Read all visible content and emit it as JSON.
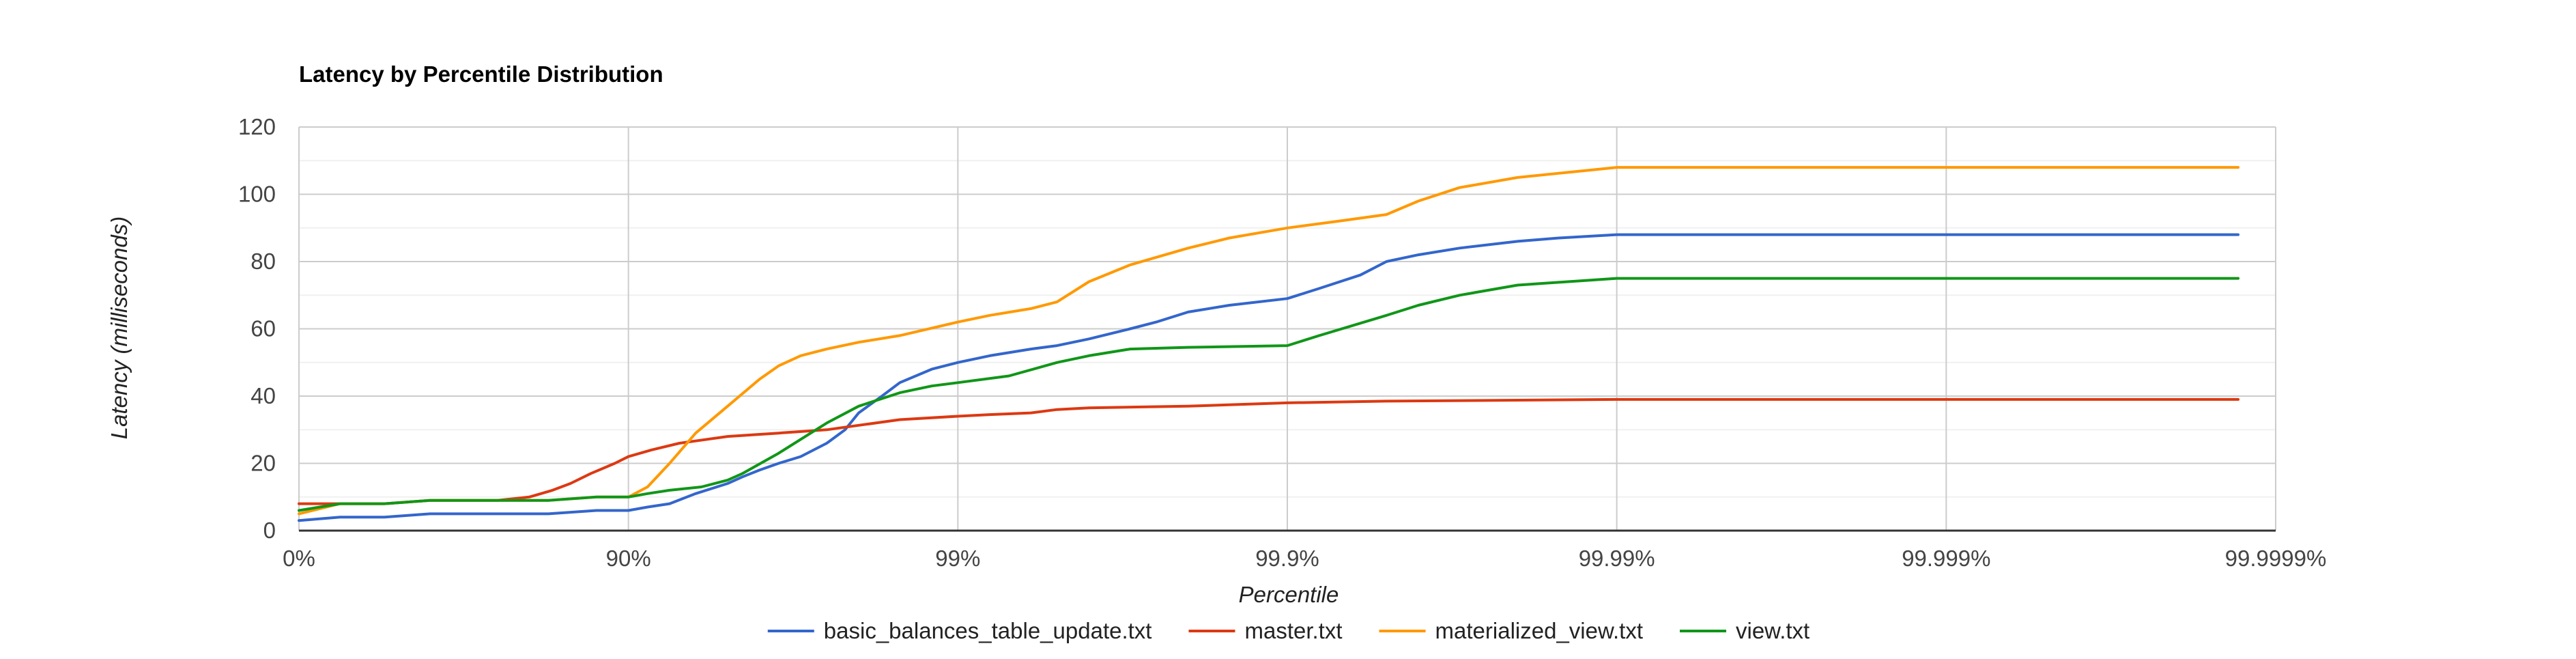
{
  "chart_data": {
    "type": "line",
    "title": "Latency by Percentile Distribution",
    "xlabel": "Percentile",
    "ylabel": "Latency (milliseconds)",
    "x_ticks": [
      "0%",
      "90%",
      "99%",
      "99.9%",
      "99.99%",
      "99.999%",
      "99.9999%"
    ],
    "x_scale": "log-percentile (each tick = one additional nine)",
    "x_range_nines": [
      0,
      6.9
    ],
    "y_ticks": [
      0,
      20,
      40,
      60,
      80,
      100,
      120
    ],
    "ylim": [
      0,
      120
    ],
    "grid": true,
    "legend_position": "bottom",
    "series": [
      {
        "name": "basic_balances_table_update.txt",
        "color": "#3366cc",
        "points": [
          {
            "x": "0%",
            "y": 3
          },
          {
            "x": "25%",
            "y": 4
          },
          {
            "x": "45%",
            "y": 4
          },
          {
            "x": "60%",
            "y": 5
          },
          {
            "x": "75%",
            "y": 5
          },
          {
            "x": "82.5%",
            "y": 5
          },
          {
            "x": "87.5%",
            "y": 6
          },
          {
            "x": "90%",
            "y": 6
          },
          {
            "x": "91.25%",
            "y": 7
          },
          {
            "x": "92.5%",
            "y": 8
          },
          {
            "x": "93.75%",
            "y": 11
          },
          {
            "x": "95%",
            "y": 14
          },
          {
            "x": "95.5%",
            "y": 16
          },
          {
            "x": "96%",
            "y": 18
          },
          {
            "x": "96.5%",
            "y": 20
          },
          {
            "x": "97%",
            "y": 22
          },
          {
            "x": "97.5%",
            "y": 26
          },
          {
            "x": "97.8%",
            "y": 30
          },
          {
            "x": "98%",
            "y": 35
          },
          {
            "x": "98.3%",
            "y": 40
          },
          {
            "x": "98.5%",
            "y": 44
          },
          {
            "x": "98.8%",
            "y": 48
          },
          {
            "x": "99%",
            "y": 50
          },
          {
            "x": "99.2%",
            "y": 52
          },
          {
            "x": "99.4%",
            "y": 54
          },
          {
            "x": "99.5%",
            "y": 55
          },
          {
            "x": "99.6%",
            "y": 57
          },
          {
            "x": "99.7%",
            "y": 60
          },
          {
            "x": "99.75%",
            "y": 62
          },
          {
            "x": "99.8%",
            "y": 65
          },
          {
            "x": "99.85%",
            "y": 67
          },
          {
            "x": "99.9%",
            "y": 69
          },
          {
            "x": "99.92%",
            "y": 72
          },
          {
            "x": "99.94%",
            "y": 76
          },
          {
            "x": "99.95%",
            "y": 80
          },
          {
            "x": "99.96%",
            "y": 82
          },
          {
            "x": "99.97%",
            "y": 84
          },
          {
            "x": "99.98%",
            "y": 86
          },
          {
            "x": "99.985%",
            "y": 87
          },
          {
            "x": "99.99%",
            "y": 88
          },
          {
            "x": "99.99987%",
            "y": 88
          }
        ]
      },
      {
        "name": "master.txt",
        "color": "#dc3912",
        "points": [
          {
            "x": "0%",
            "y": 8
          },
          {
            "x": "25%",
            "y": 8
          },
          {
            "x": "45%",
            "y": 8
          },
          {
            "x": "60%",
            "y": 9
          },
          {
            "x": "75%",
            "y": 9
          },
          {
            "x": "80%",
            "y": 10
          },
          {
            "x": "83%",
            "y": 12
          },
          {
            "x": "85%",
            "y": 14
          },
          {
            "x": "87%",
            "y": 17
          },
          {
            "x": "89%",
            "y": 20
          },
          {
            "x": "90%",
            "y": 22
          },
          {
            "x": "91.5%",
            "y": 24
          },
          {
            "x": "93%",
            "y": 26
          },
          {
            "x": "95%",
            "y": 28
          },
          {
            "x": "96.5%",
            "y": 29
          },
          {
            "x": "97.5%",
            "y": 30
          },
          {
            "x": "98.5%",
            "y": 33
          },
          {
            "x": "99%",
            "y": 34
          },
          {
            "x": "99.2%",
            "y": 34.5
          },
          {
            "x": "99.4%",
            "y": 35
          },
          {
            "x": "99.5%",
            "y": 36
          },
          {
            "x": "99.6%",
            "y": 36.5
          },
          {
            "x": "99.8%",
            "y": 37
          },
          {
            "x": "99.9%",
            "y": 38
          },
          {
            "x": "99.95%",
            "y": 38.5
          },
          {
            "x": "99.99%",
            "y": 39
          },
          {
            "x": "99.99987%",
            "y": 39
          }
        ]
      },
      {
        "name": "materialized_view.txt",
        "color": "#ff9900",
        "points": [
          {
            "x": "0%",
            "y": 5
          },
          {
            "x": "25%",
            "y": 8
          },
          {
            "x": "45%",
            "y": 8
          },
          {
            "x": "60%",
            "y": 9
          },
          {
            "x": "75%",
            "y": 9
          },
          {
            "x": "82.5%",
            "y": 9
          },
          {
            "x": "87.5%",
            "y": 10
          },
          {
            "x": "90%",
            "y": 10
          },
          {
            "x": "91.25%",
            "y": 13
          },
          {
            "x": "92.5%",
            "y": 20
          },
          {
            "x": "93.75%",
            "y": 29
          },
          {
            "x": "95%",
            "y": 37
          },
          {
            "x": "96%",
            "y": 45
          },
          {
            "x": "96.5%",
            "y": 49
          },
          {
            "x": "97%",
            "y": 52
          },
          {
            "x": "97.5%",
            "y": 54
          },
          {
            "x": "98%",
            "y": 56
          },
          {
            "x": "98.5%",
            "y": 58
          },
          {
            "x": "99%",
            "y": 62
          },
          {
            "x": "99.2%",
            "y": 64
          },
          {
            "x": "99.4%",
            "y": 66
          },
          {
            "x": "99.5%",
            "y": 68
          },
          {
            "x": "99.6%",
            "y": 74
          },
          {
            "x": "99.7%",
            "y": 79
          },
          {
            "x": "99.8%",
            "y": 84
          },
          {
            "x": "99.85%",
            "y": 87
          },
          {
            "x": "99.9%",
            "y": 90
          },
          {
            "x": "99.93%",
            "y": 92
          },
          {
            "x": "99.95%",
            "y": 94
          },
          {
            "x": "99.96%",
            "y": 98
          },
          {
            "x": "99.97%",
            "y": 102
          },
          {
            "x": "99.98%",
            "y": 105
          },
          {
            "x": "99.99%",
            "y": 108
          },
          {
            "x": "99.99987%",
            "y": 108
          }
        ]
      },
      {
        "name": "view.txt",
        "color": "#109618",
        "points": [
          {
            "x": "0%",
            "y": 6
          },
          {
            "x": "25%",
            "y": 8
          },
          {
            "x": "45%",
            "y": 8
          },
          {
            "x": "60%",
            "y": 9
          },
          {
            "x": "75%",
            "y": 9
          },
          {
            "x": "82.5%",
            "y": 9
          },
          {
            "x": "87.5%",
            "y": 10
          },
          {
            "x": "90%",
            "y": 10
          },
          {
            "x": "91.25%",
            "y": 11
          },
          {
            "x": "92.5%",
            "y": 12
          },
          {
            "x": "94%",
            "y": 13
          },
          {
            "x": "95%",
            "y": 15
          },
          {
            "x": "95.5%",
            "y": 17
          },
          {
            "x": "96.5%",
            "y": 23
          },
          {
            "x": "97.5%",
            "y": 32
          },
          {
            "x": "98%",
            "y": 37
          },
          {
            "x": "98.5%",
            "y": 41
          },
          {
            "x": "98.8%",
            "y": 43
          },
          {
            "x": "99%",
            "y": 44
          },
          {
            "x": "99.3%",
            "y": 46
          },
          {
            "x": "99.5%",
            "y": 50
          },
          {
            "x": "99.6%",
            "y": 52
          },
          {
            "x": "99.7%",
            "y": 54
          },
          {
            "x": "99.8%",
            "y": 54.5
          },
          {
            "x": "99.9%",
            "y": 55
          },
          {
            "x": "99.92%",
            "y": 58
          },
          {
            "x": "99.95%",
            "y": 64
          },
          {
            "x": "99.96%",
            "y": 67
          },
          {
            "x": "99.97%",
            "y": 70
          },
          {
            "x": "99.98%",
            "y": 73
          },
          {
            "x": "99.99%",
            "y": 75
          },
          {
            "x": "99.99987%",
            "y": 75
          }
        ]
      }
    ]
  }
}
